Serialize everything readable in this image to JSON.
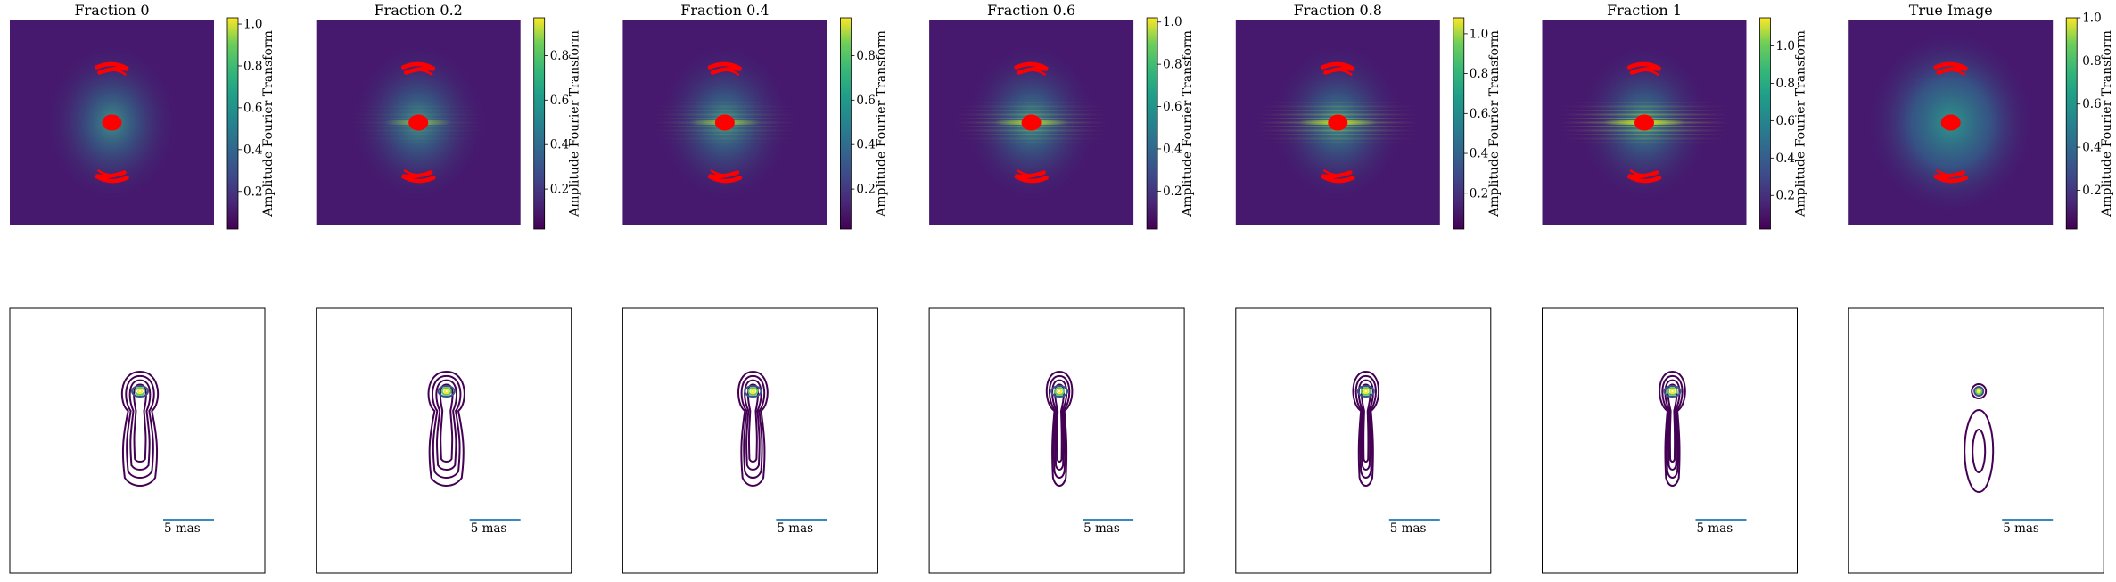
{
  "chart_data": {
    "type": "heatmap",
    "colormap": "viridis",
    "top_row_panels": [
      {
        "title": "Fraction 0",
        "colorbar": {
          "label": "Amplitude Fourier Transform",
          "ticks": [
            0.2,
            0.4,
            0.6,
            0.8,
            1.0
          ],
          "range": [
            0.02,
            1.03
          ]
        },
        "horizontal_streaks": 0.0
      },
      {
        "title": "Fraction 0.2",
        "colorbar": {
          "label": "Amplitude Fourier Transform",
          "ticks": [
            0.2,
            0.4,
            0.6,
            0.8
          ],
          "range": [
            0.02,
            0.97
          ]
        },
        "horizontal_streaks": 0.2
      },
      {
        "title": "Fraction 0.4",
        "colorbar": {
          "label": "Amplitude Fourier Transform",
          "ticks": [
            0.2,
            0.4,
            0.6,
            0.8
          ],
          "range": [
            0.02,
            0.97
          ]
        },
        "horizontal_streaks": 0.4
      },
      {
        "title": "Fraction 0.6",
        "colorbar": {
          "label": "Amplitude Fourier Transform",
          "ticks": [
            0.2,
            0.4,
            0.6,
            0.8,
            1.0
          ],
          "range": [
            0.02,
            1.02
          ]
        },
        "horizontal_streaks": 0.6
      },
      {
        "title": "Fraction 0.8",
        "colorbar": {
          "label": "Amplitude Fourier Transform",
          "ticks": [
            0.2,
            0.4,
            0.6,
            0.8,
            1.0
          ],
          "range": [
            0.02,
            1.08
          ]
        },
        "horizontal_streaks": 0.8
      },
      {
        "title": "Fraction 1",
        "colorbar": {
          "label": "Amplitude Fourier Transform",
          "ticks": [
            0.2,
            0.4,
            0.6,
            0.8,
            1.0
          ],
          "range": [
            0.02,
            1.15
          ]
        },
        "horizontal_streaks": 1.0
      },
      {
        "title": "True Image",
        "colorbar": {
          "label": "Amplitude Fourier Transform",
          "ticks": [
            0.2,
            0.4,
            0.6,
            0.8,
            1.0
          ],
          "range": [
            0.02,
            1.0
          ]
        },
        "horizontal_streaks": 0.0
      }
    ],
    "bottom_row": {
      "type": "contour",
      "scale_bar_label": "5 mas",
      "panels": [
        {
          "variant": "broad"
        },
        {
          "variant": "broad"
        },
        {
          "variant": "medium"
        },
        {
          "variant": "narrow"
        },
        {
          "variant": "narrow"
        },
        {
          "variant": "narrow"
        },
        {
          "variant": "true"
        }
      ]
    }
  },
  "colors": {
    "uv_points": "#ff0000",
    "contour_outer": "#440154",
    "contour_mid": "#3b528b",
    "contour_inner": "#5ec962",
    "contour_peak": "#fde725",
    "scale_bar": "#1f77b4",
    "frame": "#000000"
  }
}
